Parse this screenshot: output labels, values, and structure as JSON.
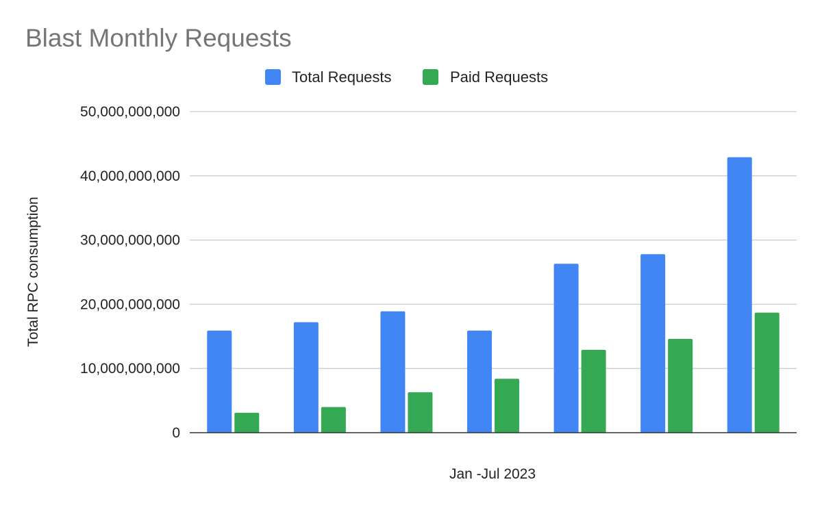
{
  "chart_data": {
    "type": "bar",
    "title": "Blast Monthly Requests",
    "xlabel": "Jan -Jul 2023",
    "ylabel": "Total  RPC consumption",
    "categories": [
      "",
      "",
      "",
      "",
      "",
      "",
      ""
    ],
    "series": [
      {
        "name": "Total Requests",
        "color": "#4285f4",
        "values": [
          15900000000,
          17200000000,
          18900000000,
          15900000000,
          26300000000,
          27800000000,
          42900000000
        ]
      },
      {
        "name": "Paid Requests",
        "color": "#34a853",
        "values": [
          3100000000,
          4000000000,
          6300000000,
          8400000000,
          12900000000,
          14600000000,
          18700000000
        ]
      }
    ],
    "ylim": [
      0,
      50000000000
    ],
    "yticks": [
      0,
      10000000000,
      20000000000,
      30000000000,
      40000000000,
      50000000000
    ],
    "ytick_labels": [
      "0",
      "10,000,000,000",
      "20,000,000,000",
      "30,000,000,000",
      "40,000,000,000",
      "50,000,000,000"
    ],
    "grid": true,
    "legend_position": "top-center"
  }
}
